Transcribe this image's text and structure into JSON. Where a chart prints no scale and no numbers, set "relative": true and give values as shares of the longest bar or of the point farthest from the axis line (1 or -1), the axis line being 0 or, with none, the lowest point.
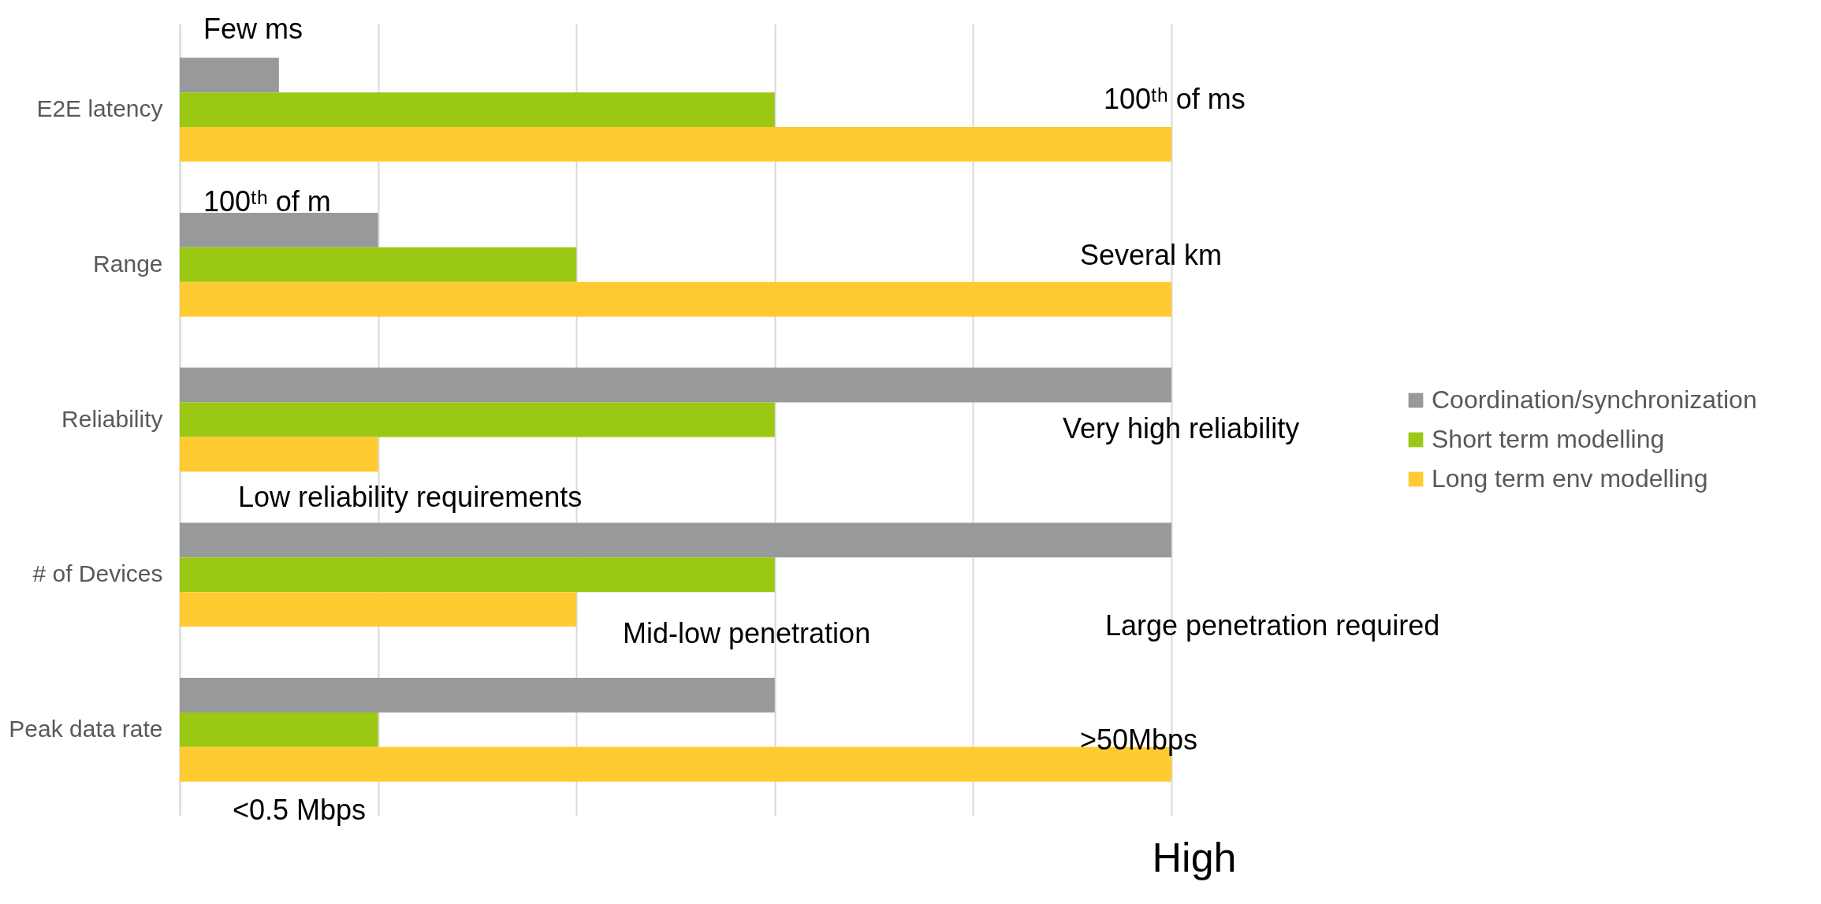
{
  "chart_data": {
    "type": "bar",
    "orientation": "horizontal",
    "relative": true,
    "grid": "x",
    "legend": "right",
    "categories": [
      "E2E latency",
      "Range",
      "Reliability",
      "# of Devices",
      "Peak data rate"
    ],
    "series": [
      {
        "name": "Coordination/synchronization",
        "color": "#98999b",
        "values": [
          0.1,
          0.2,
          1,
          1,
          0.6
        ]
      },
      {
        "name": "Short term modelling",
        "color": "#9bc813",
        "values": [
          0.6,
          0.4,
          0.6,
          0.6,
          0.2
        ]
      },
      {
        "name": "Long term env modelling",
        "color": "#ffcb31",
        "values": [
          1,
          1,
          0.2,
          0.4,
          1
        ]
      }
    ],
    "annotations": [
      "Few ms",
      "100ᵗʰ of ms",
      "100ᵗʰ of m",
      "Several km",
      "Low reliability requirements",
      "Very high reliability",
      "Mid-low penetration",
      "Large penetration required",
      "<0.5 Mbps",
      ">50Mbps",
      "High"
    ]
  }
}
